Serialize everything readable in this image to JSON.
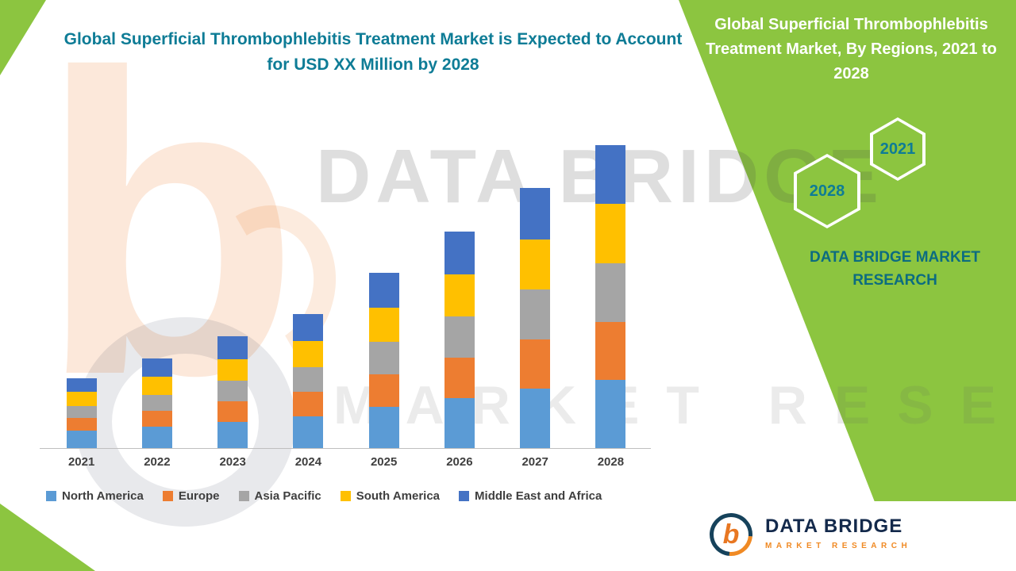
{
  "page": {
    "main_title": "Global Superficial Thrombophlebitis Treatment Market is Expected to Account for USD XX Million by 2028"
  },
  "side_panel": {
    "title": "Global Superficial Thrombophlebitis Treatment Market, By Regions, 2021 to 2028",
    "hexagon_top": "2021",
    "hexagon_bottom": "2028",
    "brand": "DATA BRIDGE MARKET RESEARCH"
  },
  "watermark": {
    "line1": "DATA BRIDGE",
    "line2": "MARKET RESEARCH",
    "logo_letter": "b"
  },
  "footer": {
    "logo_letter": "b",
    "logo_text": "DATA BRIDGE",
    "logo_subtext": "MARKET RESEARCH"
  },
  "colors": {
    "accent_green": "#8CC540",
    "accent_teal": "#0E7C96",
    "brand_navy": "#13294B",
    "brand_orange": "#F08A24"
  },
  "chart_data": {
    "type": "bar",
    "stacked": true,
    "title": "Global Superficial Thrombophlebitis Treatment Market is Expected to Account for USD XX Million by 2028",
    "xlabel": "",
    "ylabel": "",
    "value_unit": "USD Million (actual values masked as XX; series values are relative estimates from bar heights)",
    "grid": false,
    "legend_position": "bottom",
    "categories": [
      "2021",
      "2022",
      "2023",
      "2024",
      "2025",
      "2026",
      "2027",
      "2028"
    ],
    "series": [
      {
        "name": "North America",
        "color": "#5B9BD5",
        "values": [
          22,
          27,
          33,
          40,
          52,
          63,
          75,
          86
        ]
      },
      {
        "name": "Europe",
        "color": "#ED7D31",
        "values": [
          16,
          20,
          26,
          31,
          41,
          51,
          62,
          73
        ]
      },
      {
        "name": "Asia Pacific",
        "color": "#A5A5A5",
        "values": [
          15,
          20,
          26,
          31,
          41,
          52,
          63,
          74
        ]
      },
      {
        "name": "South America",
        "color": "#FFC000",
        "values": [
          18,
          23,
          27,
          33,
          43,
          53,
          63,
          75
        ]
      },
      {
        "name": "Middle East and Africa",
        "color": "#4472C4",
        "values": [
          17,
          23,
          29,
          34,
          44,
          54,
          65,
          74
        ]
      }
    ],
    "totals": [
      88,
      113,
      141,
      169,
      221,
      273,
      328,
      382
    ]
  }
}
